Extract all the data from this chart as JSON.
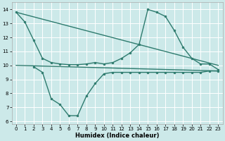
{
  "series": [
    {
      "x": [
        0,
        23
      ],
      "y": [
        13.8,
        10.0
      ],
      "color": "#2e7b6e",
      "linewidth": 1.0,
      "marker": null
    },
    {
      "x": [
        0,
        23
      ],
      "y": [
        10.0,
        9.6
      ],
      "color": "#2e7b6e",
      "linewidth": 1.0,
      "marker": null
    },
    {
      "x": [
        0,
        1,
        2,
        3,
        4,
        5,
        6,
        7,
        8,
        9,
        10,
        11,
        12,
        13,
        14,
        15,
        16,
        17,
        18,
        19,
        20,
        21,
        22,
        23
      ],
      "y": [
        13.8,
        13.1,
        11.8,
        10.5,
        10.2,
        10.1,
        10.05,
        10.05,
        10.1,
        10.2,
        10.1,
        10.2,
        10.5,
        10.9,
        11.5,
        14.0,
        13.8,
        13.5,
        12.5,
        11.3,
        10.5,
        10.1,
        10.1,
        9.7
      ],
      "color": "#2e7b6e",
      "linewidth": 1.0,
      "marker": "o",
      "markersize": 2.0
    },
    {
      "x": [
        2,
        3,
        4,
        5,
        6,
        7,
        8,
        9,
        10,
        11,
        12,
        13,
        14,
        15,
        16,
        17,
        18,
        19,
        20,
        21,
        22,
        23
      ],
      "y": [
        9.9,
        9.5,
        7.6,
        7.2,
        6.4,
        6.4,
        7.8,
        8.7,
        9.4,
        9.5,
        9.5,
        9.5,
        9.5,
        9.5,
        9.5,
        9.5,
        9.5,
        9.5,
        9.5,
        9.5,
        9.6,
        9.6
      ],
      "color": "#2e7b6e",
      "linewidth": 1.0,
      "marker": "o",
      "markersize": 2.0
    }
  ],
  "xlim": [
    -0.5,
    23.5
  ],
  "ylim": [
    5.8,
    14.5
  ],
  "yticks": [
    6,
    7,
    8,
    9,
    10,
    11,
    12,
    13,
    14
  ],
  "xticks": [
    0,
    1,
    2,
    3,
    4,
    5,
    6,
    7,
    8,
    9,
    10,
    11,
    12,
    13,
    14,
    15,
    16,
    17,
    18,
    19,
    20,
    21,
    22,
    23
  ],
  "xlabel": "Humidex (Indice chaleur)",
  "background_color": "#cce9e9",
  "grid_color": "#ffffff",
  "xlabel_fontsize": 6.0,
  "tick_fontsize": 5.0
}
